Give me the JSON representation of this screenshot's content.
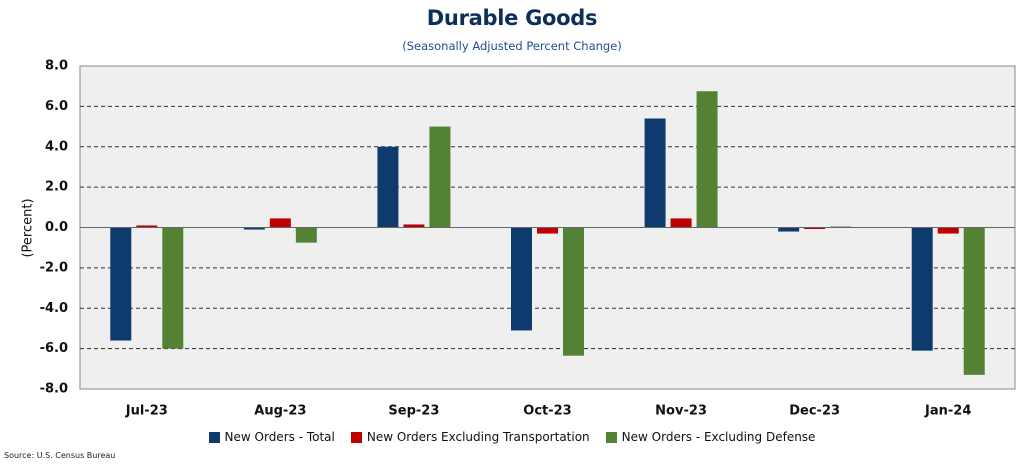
{
  "chart_data": {
    "type": "bar",
    "title": "Durable Goods",
    "subtitle": "(Seasonally Adjusted Percent Change)",
    "ylabel": "(Percent)",
    "xlabel": "",
    "ylim": [
      -8,
      8
    ],
    "yticks": [
      "8.0",
      "6.0",
      "4.0",
      "2.0",
      "0.0",
      "-2.0",
      "-4.0",
      "-6.0",
      "-8.0"
    ],
    "ytick_values": [
      8,
      6,
      4,
      2,
      0,
      -2,
      -4,
      -6,
      -8
    ],
    "grid": "dashed horizontal",
    "categories": [
      "Jul-23",
      "Aug-23",
      "Sep-23",
      "Oct-23",
      "Nov-23",
      "Dec-23",
      "Jan-24"
    ],
    "series": [
      {
        "name": "New Orders - Total",
        "color": "#0e3a6e",
        "values": [
          -5.6,
          -0.1,
          4.0,
          -5.1,
          5.4,
          -0.2,
          -6.1
        ]
      },
      {
        "name": "New Orders Excluding Transportation",
        "color": "#c00000",
        "values": [
          0.1,
          0.45,
          0.15,
          -0.3,
          0.45,
          0.0,
          -0.3
        ]
      },
      {
        "name": "New Orders - Excluding Defense",
        "color": "#548235",
        "values": [
          -6.0,
          -0.75,
          5.0,
          -6.35,
          6.75,
          0.05,
          -7.3
        ]
      }
    ],
    "legend_position": "bottom"
  },
  "source": "Source: U.S. Census Bureau"
}
